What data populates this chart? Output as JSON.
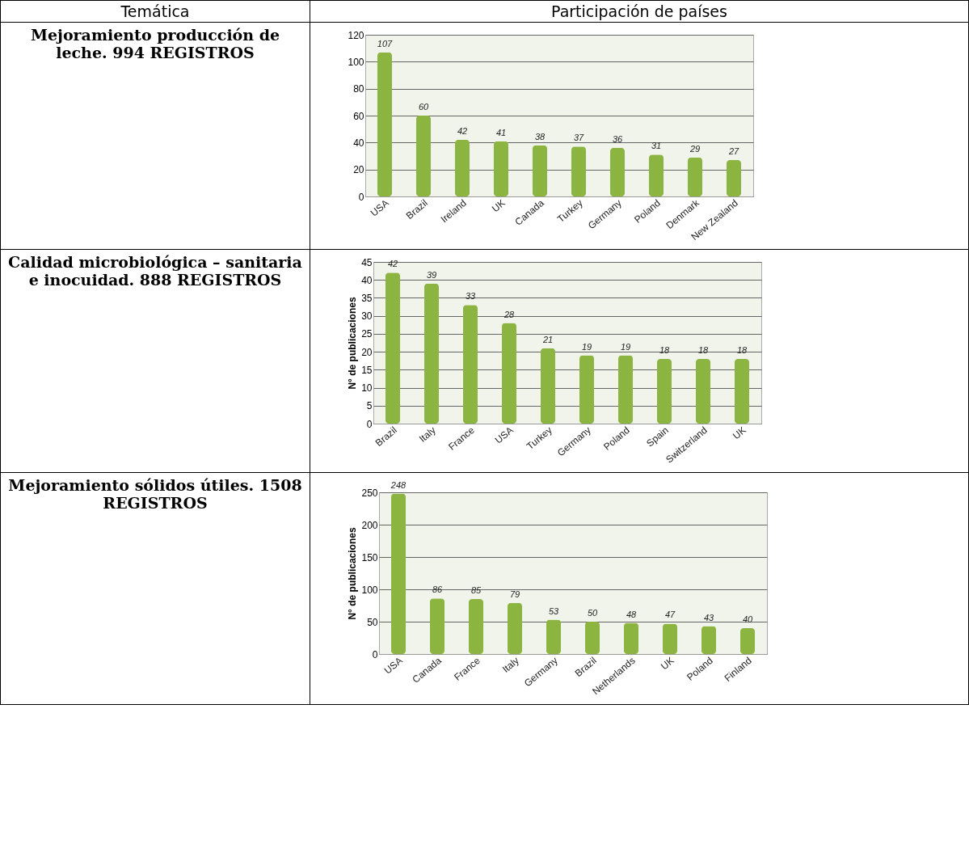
{
  "chart_data": [
    {
      "type": "bar",
      "title": "Mejoramiento producción de leche. 994 REGISTROS",
      "annotations": [
        "Temática",
        "Participación de países"
      ],
      "categories": [
        "USA",
        "Brazil",
        "Ireland",
        "UK",
        "Canada",
        "Turkey",
        "Germany",
        "Poland",
        "Denmark",
        "New Zealand"
      ],
      "values": [
        107,
        60,
        42,
        41,
        38,
        37,
        36,
        31,
        29,
        27
      ],
      "color": "#8cb440",
      "ylim": [
        0,
        120
      ],
      "yticks": [
        0,
        20,
        40,
        60,
        80,
        100,
        120
      ],
      "grid": "y",
      "data_labels": true
    },
    {
      "type": "bar",
      "title": "Calidad microbiológica – sanitaria e inocuidad. 888 REGISTROS",
      "ylabel": "N° de publicaciones",
      "categories": [
        "Brazil",
        "Italy",
        "France",
        "USA",
        "Turkey",
        "Germany",
        "Poland",
        "Spain",
        "Switzerland",
        "UK"
      ],
      "values": [
        42,
        39,
        33,
        28,
        21,
        19,
        19,
        18,
        18,
        18
      ],
      "color": "#8cb440",
      "ylim": [
        0,
        45
      ],
      "yticks": [
        0,
        5,
        10,
        15,
        20,
        25,
        30,
        35,
        40,
        45
      ],
      "grid": "y",
      "data_labels": true
    },
    {
      "type": "bar",
      "title": "Mejoramiento sólidos útiles. 1508 REGISTROS",
      "ylabel": "N° de publicaciones",
      "categories": [
        "USA",
        "Canada",
        "France",
        "Italy",
        "Germany",
        "Brazil",
        "Netherlands",
        "UK",
        "Poland",
        "Finland"
      ],
      "values": [
        248,
        86,
        85,
        79,
        53,
        50,
        48,
        47,
        43,
        40
      ],
      "color": "#8cb440",
      "ylim": [
        0,
        250
      ],
      "yticks": [
        0,
        50,
        100,
        150,
        200,
        250
      ],
      "grid": "y",
      "data_labels": true
    }
  ]
}
